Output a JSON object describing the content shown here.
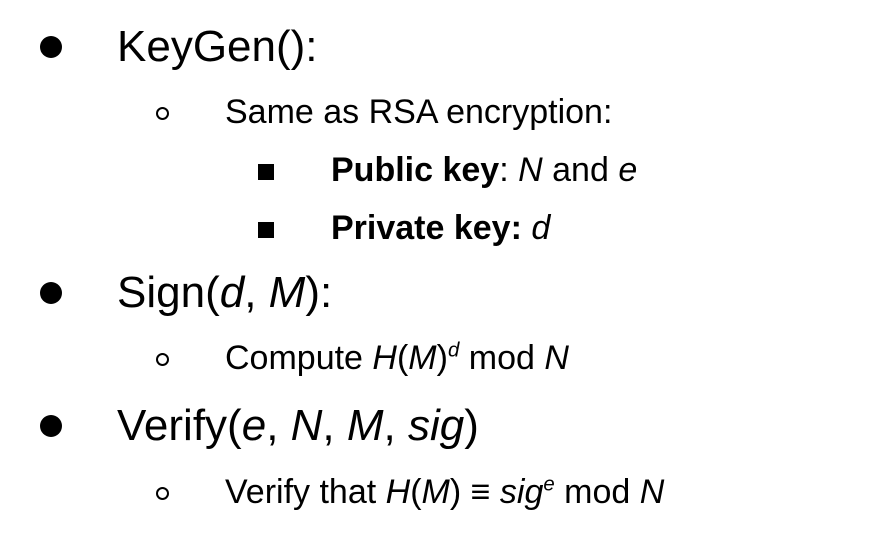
{
  "items": [
    {
      "name": "KeyGen",
      "head": "KeyGen():",
      "sub": [
        {
          "text": "Same as RSA encryption:",
          "subsub": [
            {
              "label": "Public key",
              "sep": ":",
              "n": "N",
              "and": "and",
              "e": "e"
            },
            {
              "label": "Private key:",
              "d": "d"
            }
          ]
        }
      ]
    },
    {
      "name": "Sign",
      "head_pre": "Sign(",
      "arg1": "d",
      "comma": ", ",
      "arg2": "M",
      "head_post": "):",
      "sub": [
        {
          "pre": "Compute ",
          "h": "H",
          "lp": "(",
          "m": "M",
          "rp": ")",
          "exp": "d",
          "mod": " mod ",
          "n": "N"
        }
      ]
    },
    {
      "name": "Verify",
      "head_pre": "Verify(",
      "a1": "e",
      "c1": ", ",
      "a2": "N",
      "c2": ", ",
      "a3": "M",
      "c3": ", ",
      "a4": "sig",
      "head_post": ")",
      "sub": [
        {
          "pre": "Verify that ",
          "h": "H",
          "lp": "(",
          "m": "M",
          "rp": ")",
          "equiv": " ≡ ",
          "sig": "sig",
          "exp": "e",
          "mod": " mod ",
          "n": "N"
        }
      ]
    }
  ]
}
